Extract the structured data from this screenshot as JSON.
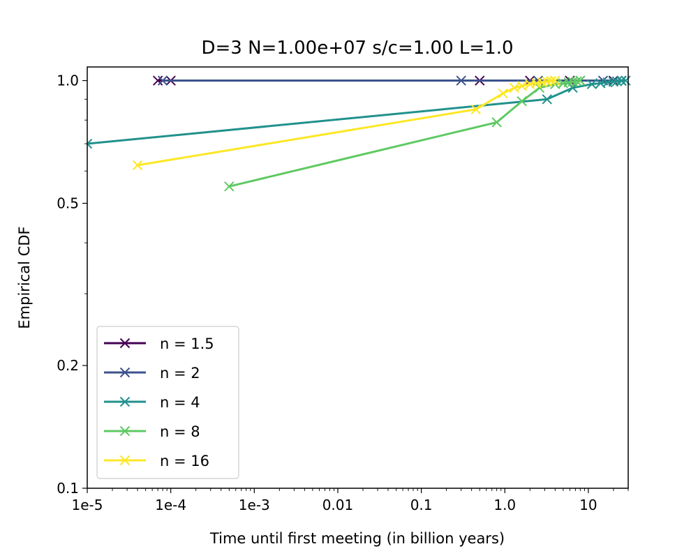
{
  "chart_data": {
    "type": "line",
    "title": "D=3 N=1.00e+07 s/c=1.00 L=1.0",
    "xlabel": "Time until first meeting (in billion years)",
    "ylabel": "Empirical CDF",
    "xscale": "log",
    "yscale": "log",
    "xlim": [
      1e-05,
      30
    ],
    "ylim": [
      0.1,
      1.08
    ],
    "xticks": [
      {
        "value": 1e-05,
        "label": "1e-5"
      },
      {
        "value": 0.0001,
        "label": "1e-4"
      },
      {
        "value": 0.001,
        "label": "1e-3"
      },
      {
        "value": 0.01,
        "label": "0.01"
      },
      {
        "value": 0.1,
        "label": "0.1"
      },
      {
        "value": 1,
        "label": "1.0"
      },
      {
        "value": 10,
        "label": "10"
      }
    ],
    "yticks": [
      {
        "value": 0.1,
        "label": "0.1"
      },
      {
        "value": 0.2,
        "label": "0.2"
      },
      {
        "value": 0.5,
        "label": "0.5"
      },
      {
        "value": 1.0,
        "label": "1.0"
      }
    ],
    "grid": false,
    "legend_position": "lower-left",
    "marker": "x",
    "series": [
      {
        "name": "n = 1.5",
        "color": "#440154",
        "x": [
          7e-05,
          0.0001,
          0.5,
          2,
          6,
          20
        ],
        "y": [
          1.0,
          1.0,
          1.0,
          1.0,
          1.0,
          1.0
        ]
      },
      {
        "name": "n = 2",
        "color": "#3b528b",
        "x": [
          8e-05,
          0.3,
          2.5,
          8,
          15,
          25
        ],
        "y": [
          1.0,
          1.0,
          1.0,
          1.0,
          1.0,
          1.0
        ]
      },
      {
        "name": "n = 4",
        "color": "#21918c",
        "x": [
          1e-05,
          3.2,
          6.5,
          11,
          14,
          17,
          20,
          22,
          25,
          28
        ],
        "y": [
          0.7,
          0.9,
          0.96,
          0.98,
          0.985,
          0.99,
          0.993,
          0.996,
          0.998,
          1.0
        ]
      },
      {
        "name": "n = 8",
        "color": "#5ec962",
        "x": [
          0.0005,
          0.8,
          1.6,
          2.6,
          4.0,
          5.0,
          5.8,
          6.5,
          7.3,
          8.0
        ],
        "y": [
          0.55,
          0.79,
          0.89,
          0.96,
          0.98,
          0.985,
          0.99,
          0.993,
          0.996,
          1.0
        ]
      },
      {
        "name": "n = 16",
        "color": "#fde725",
        "x": [
          4e-05,
          0.45,
          0.95,
          1.3,
          1.6,
          2.0,
          2.4,
          2.8,
          3.2,
          3.6,
          4.0
        ],
        "y": [
          0.62,
          0.85,
          0.93,
          0.96,
          0.97,
          0.98,
          0.985,
          0.99,
          0.995,
          0.998,
          1.0
        ]
      }
    ]
  }
}
